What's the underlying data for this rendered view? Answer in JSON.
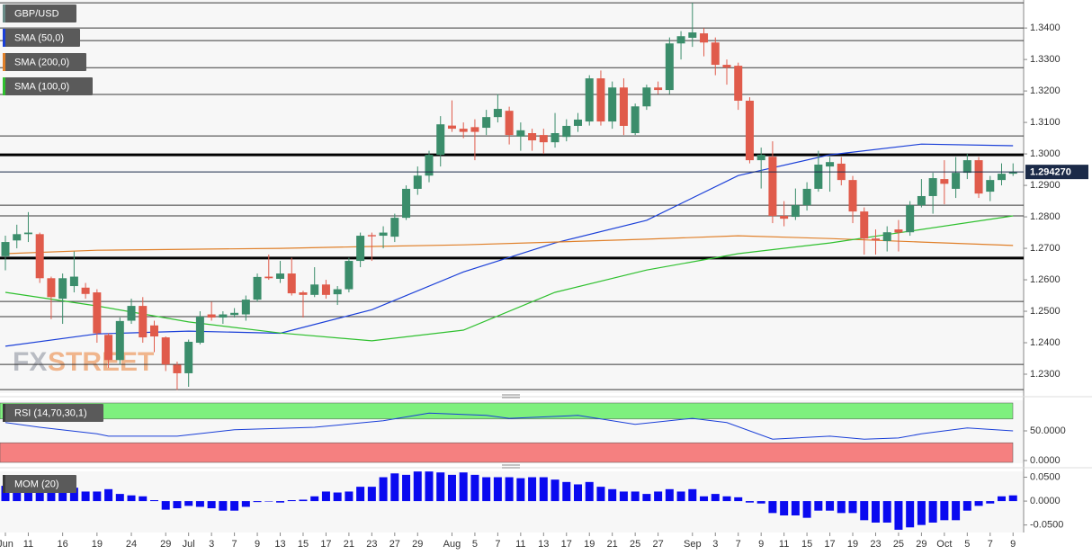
{
  "watermark": [
    "FX",
    "STREET"
  ],
  "chart_data": [
    {
      "type": "candlestick",
      "symbol": "GBP/USD",
      "up_color": "#3b8d6b",
      "down_color": "#e05b4b",
      "open": [
        1.2675,
        1.2725,
        1.2745,
        1.2745,
        1.2605,
        1.254,
        1.258,
        1.2575,
        1.256,
        1.2425,
        1.2345,
        1.247,
        1.2517,
        1.2455,
        1.2417,
        1.233,
        1.2303,
        1.24,
        1.249,
        1.248,
        1.2488,
        1.249,
        1.2537,
        1.261,
        1.2603,
        1.262,
        1.256,
        1.2552,
        1.2585,
        1.2554,
        1.257,
        1.266,
        1.2742,
        1.274,
        1.2737,
        1.2797,
        1.2889,
        1.2931,
        1.2997,
        1.309,
        1.308,
        1.3085,
        1.3083,
        1.3117,
        1.3137,
        1.3055,
        1.3066,
        1.306,
        1.3037,
        1.3054,
        1.3089,
        1.3103,
        1.324,
        1.3103,
        1.3211,
        1.3066,
        1.3151,
        1.3211,
        1.3203,
        1.3351,
        1.3369,
        1.3383,
        1.3354,
        1.3283,
        1.328,
        1.3169,
        1.298,
        1.2991,
        1.2803,
        1.28,
        1.2837,
        1.2889,
        1.296,
        1.2969,
        1.2917,
        1.2817,
        1.2731,
        1.2723,
        1.276,
        1.2751,
        1.2837,
        1.2866,
        1.292,
        1.2889,
        1.294,
        1.298,
        1.288,
        1.2917,
        1.2937
      ],
      "high": [
        1.274,
        1.2775,
        1.2815,
        1.275,
        1.261,
        1.262,
        1.269,
        1.259,
        1.257,
        1.243,
        1.248,
        1.254,
        1.2545,
        1.247,
        1.242,
        1.234,
        1.241,
        1.25,
        1.253,
        1.25,
        1.251,
        1.255,
        1.262,
        1.268,
        1.266,
        1.267,
        1.2565,
        1.264,
        1.26,
        1.258,
        1.267,
        1.275,
        1.275,
        1.277,
        1.281,
        1.29,
        1.296,
        1.301,
        1.312,
        1.317,
        1.31,
        1.311,
        1.314,
        1.319,
        1.315,
        1.31,
        1.308,
        1.308,
        1.313,
        1.311,
        1.313,
        1.325,
        1.3265,
        1.323,
        1.324,
        1.316,
        1.322,
        1.323,
        1.337,
        1.339,
        1.348,
        1.34,
        1.337,
        1.33,
        1.329,
        1.318,
        1.302,
        1.304,
        1.285,
        1.289,
        1.291,
        1.301,
        1.299,
        1.299,
        1.293,
        1.283,
        1.276,
        1.277,
        1.279,
        1.285,
        1.292,
        1.294,
        1.298,
        1.299,
        1.3,
        1.299,
        1.293,
        1.297,
        1.297
      ],
      "low": [
        1.263,
        1.27,
        1.272,
        1.259,
        1.2475,
        1.246,
        1.256,
        1.254,
        1.24,
        1.232,
        1.233,
        1.246,
        1.24,
        1.237,
        1.231,
        1.225,
        1.226,
        1.2395,
        1.247,
        1.246,
        1.248,
        1.247,
        1.253,
        1.26,
        1.259,
        1.255,
        1.248,
        1.2545,
        1.254,
        1.252,
        1.256,
        1.264,
        1.266,
        1.27,
        1.272,
        1.279,
        1.287,
        1.291,
        1.296,
        1.307,
        1.305,
        1.298,
        1.306,
        1.31,
        1.303,
        1.301,
        1.301,
        1.3,
        1.302,
        1.304,
        1.307,
        1.309,
        1.309,
        1.308,
        1.306,
        1.306,
        1.314,
        1.319,
        1.319,
        1.33,
        1.334,
        1.331,
        1.325,
        1.322,
        1.314,
        1.297,
        1.289,
        1.278,
        1.277,
        1.279,
        1.282,
        1.288,
        1.288,
        1.29,
        1.278,
        1.268,
        1.268,
        1.269,
        1.269,
        1.274,
        1.283,
        1.281,
        1.284,
        1.286,
        1.292,
        1.286,
        1.285,
        1.29,
        1.293
      ],
      "close": [
        1.272,
        1.2745,
        1.275,
        1.2605,
        1.2545,
        1.2605,
        1.261,
        1.2555,
        1.243,
        1.2345,
        1.2469,
        1.2517,
        1.2417,
        1.242,
        1.2331,
        1.2303,
        1.2403,
        1.2483,
        1.248,
        1.249,
        1.2495,
        1.2537,
        1.2609,
        1.2605,
        1.262,
        1.2557,
        1.2552,
        1.2585,
        1.2552,
        1.257,
        1.266,
        1.274,
        1.2738,
        1.275,
        1.2797,
        1.2889,
        1.2931,
        1.2997,
        1.3094,
        1.308,
        1.307,
        1.307,
        1.3117,
        1.3143,
        1.306,
        1.3075,
        1.3043,
        1.3037,
        1.3066,
        1.3089,
        1.3109,
        1.324,
        1.3103,
        1.3211,
        1.3089,
        1.3151,
        1.3211,
        1.3203,
        1.3351,
        1.3374,
        1.3386,
        1.3354,
        1.3283,
        1.3274,
        1.3169,
        1.298,
        1.2997,
        1.2803,
        1.2794,
        1.2837,
        1.2889,
        1.2966,
        1.2974,
        1.2917,
        1.2817,
        1.2731,
        1.2725,
        1.2751,
        1.275,
        1.2837,
        1.2866,
        1.2923,
        1.2905,
        1.294,
        1.298,
        1.2874,
        1.2917,
        1.2937,
        1.2943
      ],
      "series": [
        {
          "name": "SMA (50,0)",
          "color": "#1a3fd8",
          "x": [
            0,
            8,
            16,
            24,
            32,
            40,
            48,
            56,
            64,
            72,
            80,
            88
          ],
          "values": [
            1.2389,
            1.2428,
            1.2437,
            1.243,
            1.2505,
            1.2625,
            1.2717,
            1.2789,
            1.2931,
            1.2997,
            1.3031,
            1.3026
          ]
        },
        {
          "name": "SMA (200,0)",
          "color": "#e0802a",
          "x": [
            0,
            8,
            16,
            24,
            32,
            40,
            48,
            56,
            64,
            72,
            80,
            88
          ],
          "values": [
            1.2683,
            1.2694,
            1.2697,
            1.27,
            1.2706,
            1.2711,
            1.272,
            1.2729,
            1.274,
            1.2731,
            1.272,
            1.2709
          ]
        },
        {
          "name": "SMA (100,0)",
          "color": "#2fc02f",
          "x": [
            0,
            8,
            16,
            24,
            32,
            40,
            48,
            56,
            64,
            72,
            80,
            88
          ],
          "values": [
            1.256,
            1.2517,
            1.2466,
            1.2431,
            1.2406,
            1.244,
            1.256,
            1.2631,
            1.2683,
            1.2717,
            1.276,
            1.2803
          ]
        }
      ],
      "levels": [
        1.348,
        1.34,
        1.336,
        1.3274,
        1.3189,
        1.3057,
        1.2837,
        1.2803,
        1.2531,
        1.2483,
        1.2331,
        1.2251
      ],
      "bold_levels": [
        1.2997,
        1.2669
      ],
      "last": {
        "value": 1.29427,
        "label": "1.294270"
      },
      "ylim": [
        1.224,
        1.3489
      ],
      "yticks": [
        {
          "value": 1.34,
          "label": "1.3400"
        },
        {
          "value": 1.33,
          "label": "1.3300"
        },
        {
          "value": 1.32,
          "label": "1.3200"
        },
        {
          "value": 1.31,
          "label": "1.3100"
        },
        {
          "value": 1.3,
          "label": "1.3000"
        },
        {
          "value": 1.29,
          "label": "1.2900"
        },
        {
          "value": 1.28,
          "label": "1.2800"
        },
        {
          "value": 1.27,
          "label": "1.2700"
        },
        {
          "value": 1.26,
          "label": "1.2600"
        },
        {
          "value": 1.25,
          "label": "1.2500"
        },
        {
          "value": 1.24,
          "label": "1.2400"
        },
        {
          "value": 1.23,
          "label": "1.2300"
        }
      ]
    },
    {
      "type": "line",
      "name": "RSI (14,70,30,1)",
      "color": "#1a3fd8",
      "overbought": 70,
      "oversold": 30,
      "overbought_color": "#7ef07e",
      "oversold_color": "#f58080",
      "x": [
        0,
        3,
        8,
        9,
        15,
        20,
        27,
        33,
        37,
        42,
        44,
        50,
        55,
        60,
        63,
        67,
        72,
        75,
        78,
        80,
        84,
        88
      ],
      "values": [
        64,
        56,
        45,
        41,
        41,
        52,
        56,
        67,
        80,
        76,
        71,
        76,
        61,
        71,
        64,
        36,
        41,
        36,
        38,
        45,
        55,
        50
      ],
      "ylim": [
        0,
        100
      ],
      "yticks": [
        {
          "value": 50,
          "label": "50.0000"
        },
        {
          "value": 0,
          "label": "0.0000"
        }
      ]
    },
    {
      "type": "bar",
      "name": "MOM (20)",
      "color": "#0a0af0",
      "categories": [
        "Jun",
        null,
        "11",
        null,
        null,
        "16",
        null,
        null,
        "19",
        null,
        null,
        "24",
        null,
        null,
        "29",
        null,
        "Jul",
        null,
        "3",
        null,
        "7",
        null,
        "9",
        null,
        "13",
        null,
        "15",
        null,
        "17",
        null,
        "21",
        null,
        "23",
        null,
        "27",
        null,
        "29",
        null,
        null,
        "Aug",
        null,
        "5",
        null,
        "7",
        null,
        "11",
        null,
        "13",
        null,
        "17",
        null,
        "19",
        null,
        "21",
        null,
        "25",
        null,
        "27",
        null,
        null,
        "Sep",
        null,
        "3",
        null,
        "7",
        null,
        "9",
        null,
        "11",
        null,
        "15",
        null,
        "17",
        null,
        "19",
        null,
        "23",
        null,
        "25",
        null,
        "29",
        null,
        "Oct",
        null,
        "5",
        null,
        "7",
        null,
        "9"
      ],
      "values": [
        0.032,
        0.03,
        0.032,
        0.03,
        0.028,
        0.03,
        0.028,
        0.02,
        0.02,
        0.025,
        0.015,
        0.012,
        0.01,
        0.002,
        -0.018,
        -0.015,
        -0.01,
        -0.012,
        -0.015,
        -0.02,
        -0.02,
        -0.012,
        -0.002,
        0.0,
        -0.003,
        0.002,
        0.003,
        0.01,
        0.02,
        0.018,
        0.02,
        0.03,
        0.03,
        0.05,
        0.058,
        0.055,
        0.062,
        0.062,
        0.06,
        0.055,
        0.06,
        0.055,
        0.05,
        0.05,
        0.05,
        0.048,
        0.05,
        0.05,
        0.045,
        0.04,
        0.035,
        0.04,
        0.03,
        0.025,
        0.02,
        0.02,
        0.015,
        0.02,
        0.025,
        0.02,
        0.025,
        0.01,
        0.015,
        0.01,
        0.008,
        -0.003,
        -0.005,
        -0.025,
        -0.03,
        -0.03,
        -0.035,
        -0.02,
        -0.02,
        -0.025,
        -0.025,
        -0.04,
        -0.045,
        -0.045,
        -0.06,
        -0.055,
        -0.05,
        -0.045,
        -0.04,
        -0.04,
        -0.02,
        -0.01,
        -0.005,
        0.01,
        0.012
      ],
      "ylim": [
        -0.062,
        0.0604
      ],
      "yticks": [
        {
          "value": 0.05,
          "label": "0.0500"
        },
        {
          "value": 0,
          "label": "0.0000"
        },
        {
          "value": -0.05,
          "label": "-0.0500"
        }
      ]
    }
  ]
}
